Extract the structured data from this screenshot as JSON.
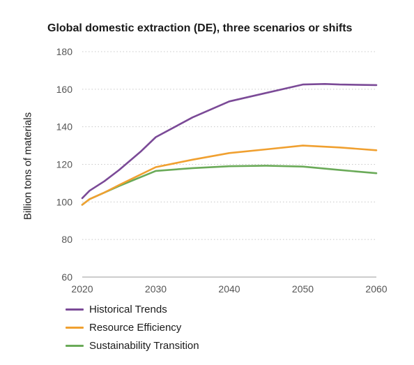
{
  "chart_data": {
    "type": "line",
    "title": "Global domestic extraction (DE), three scenarios or shifts",
    "xlabel": "",
    "ylabel": "Billion tons of materials",
    "xlim": [
      2020,
      2060
    ],
    "ylim": [
      60,
      180
    ],
    "x_ticks": [
      2020,
      2030,
      2040,
      2050,
      2060
    ],
    "y_ticks": [
      60,
      80,
      100,
      120,
      140,
      160,
      180
    ],
    "grid": "horizontal dotted",
    "legend_position": "bottom-left",
    "series": [
      {
        "name": "Historical Trends",
        "color": "#7b4a97",
        "x": [
          2020,
          2021,
          2023,
          2025,
          2028,
          2030,
          2035,
          2040,
          2045,
          2050,
          2053,
          2055,
          2060
        ],
        "y": [
          102,
          106,
          111,
          117,
          127,
          134.5,
          145,
          153.5,
          158,
          162.5,
          162.8,
          162.5,
          162.2
        ]
      },
      {
        "name": "Resource Efficiency",
        "color": "#f0a030",
        "x": [
          2020,
          2021,
          2023,
          2025,
          2030,
          2035,
          2040,
          2045,
          2050,
          2055,
          2060
        ],
        "y": [
          98.5,
          101.5,
          105,
          109,
          118.5,
          122.5,
          126,
          128,
          130,
          129,
          127.5
        ]
      },
      {
        "name": "Sustainability Transition",
        "color": "#6aaa58",
        "x": [
          2020,
          2021,
          2023,
          2025,
          2030,
          2035,
          2040,
          2045,
          2050,
          2055,
          2060
        ],
        "y": [
          98.5,
          101.5,
          105,
          108.5,
          116.5,
          118,
          119,
          119.3,
          118.8,
          117,
          115.3
        ]
      }
    ]
  }
}
